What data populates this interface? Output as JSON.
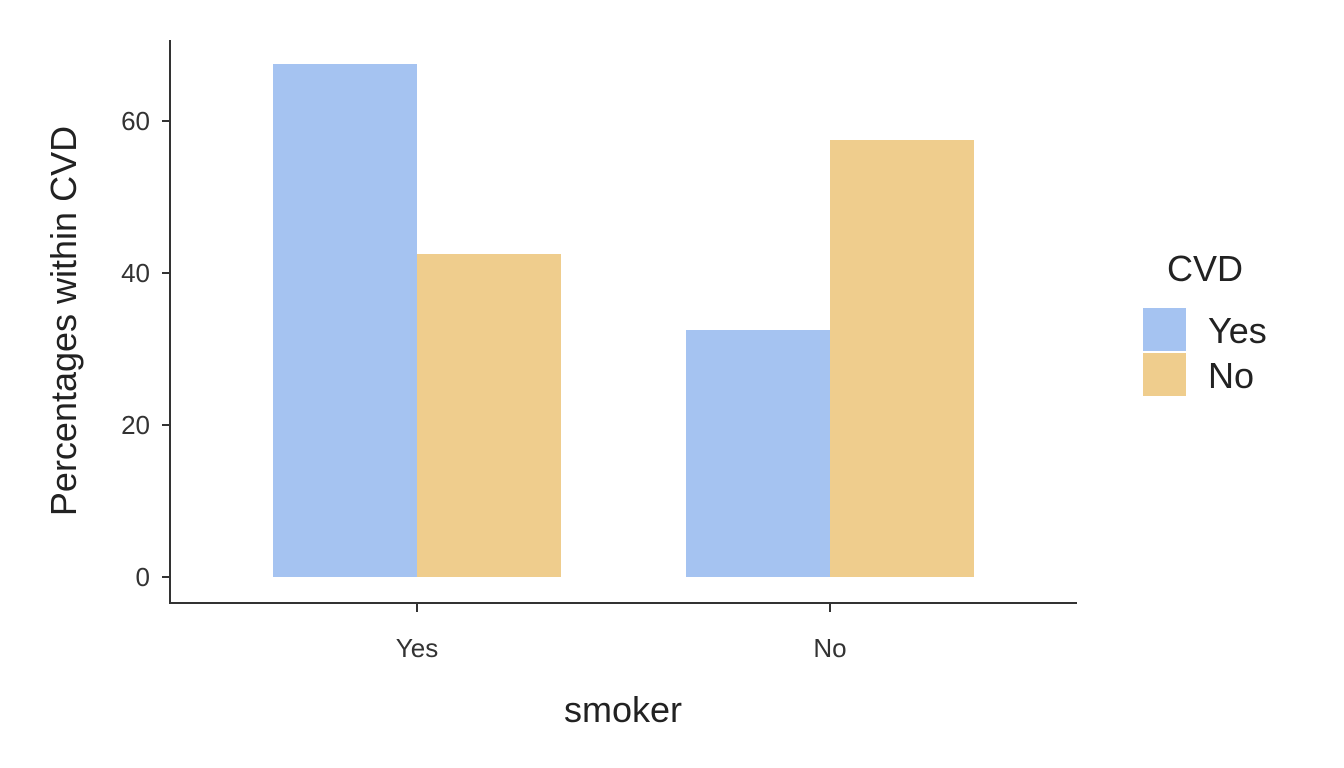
{
  "chart_data": {
    "type": "bar",
    "title": "",
    "xlabel": "smoker",
    "ylabel": "Percentages within CVD",
    "categories": [
      "Yes",
      "No"
    ],
    "ylim": [
      0,
      70
    ],
    "yticks": [
      0,
      20,
      40,
      60
    ],
    "grid": false,
    "legend": {
      "title": "CVD",
      "placement": "right"
    },
    "series": [
      {
        "name": "Yes",
        "color": "#a5c3f1",
        "values": [
          67.5,
          32.5
        ]
      },
      {
        "name": "No",
        "color": "#efcd8d",
        "values": [
          42.5,
          57.5
        ]
      }
    ]
  }
}
